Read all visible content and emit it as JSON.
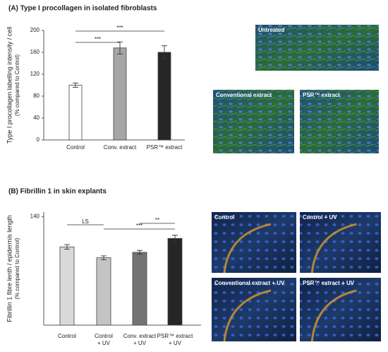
{
  "chart_data": [
    {
      "type": "bar",
      "title": "(A) Type I procollagen in isolated fibroblasts",
      "ylabel": [
        "Type I procollagen labelling intensity / cell",
        "(% compared to Control)"
      ],
      "categories": [
        "Control",
        "Conv. extract",
        "PSR™ extract"
      ],
      "values": [
        100,
        168,
        160
      ],
      "errors": [
        4,
        11,
        12
      ],
      "colors": [
        "#ffffff",
        "#a6a6a6",
        "#262626"
      ],
      "ylim": [
        0,
        200
      ],
      "yticks": [
        0,
        40,
        80,
        120,
        160,
        200
      ],
      "annotations": [
        "***",
        "***"
      ]
    },
    {
      "type": "bar",
      "title": "(B) Fibrillin 1 in skin explants",
      "ylabel": [
        "Fibrillin 1 fibre lenth / epidermis length",
        "(% compared to Control)"
      ],
      "categories": [
        "Control",
        "Control\n+ UV",
        "Conv. extract\n+ UV",
        "PSR™ extract\n+ UV"
      ],
      "values": [
        101,
        87,
        94,
        112
      ],
      "errors": [
        3,
        2.5,
        2.5,
        4
      ],
      "colors": [
        "#d9d9d9",
        "#c4c4c4",
        "#737373",
        "#262626"
      ],
      "ylim": [
        0,
        146
      ],
      "yticks": [
        140
      ],
      "annotations": [
        "LS",
        "***",
        "**"
      ]
    }
  ],
  "images": [
    [
      "Untreated",
      "Conventional extract",
      "PSR™ extract"
    ],
    [
      "Control",
      "Control + UV",
      "Conventional extract + UV",
      "PSR™ extract + UV"
    ]
  ]
}
